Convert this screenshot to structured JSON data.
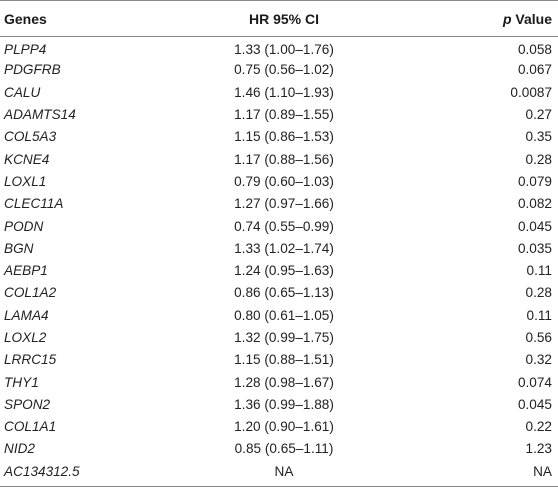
{
  "table": {
    "headers": {
      "genes": "Genes",
      "hr": "HR 95% CI",
      "p_prefix": "p",
      "p_suffix": " Value"
    },
    "rows": [
      {
        "gene": "PLPP4",
        "hr": "1.33 (1.00–1.76)",
        "p": "0.058"
      },
      {
        "gene": "PDGFRB",
        "hr": "0.75 (0.56–1.02)",
        "p": "0.067"
      },
      {
        "gene": "CALU",
        "hr": "1.46 (1.10–1.93)",
        "p": "0.0087"
      },
      {
        "gene": "ADAMTS14",
        "hr": "1.17 (0.89–1.55)",
        "p": "0.27"
      },
      {
        "gene": "COL5A3",
        "hr": "1.15 (0.86–1.53)",
        "p": "0.35"
      },
      {
        "gene": "KCNE4",
        "hr": "1.17 (0.88–1.56)",
        "p": "0.28"
      },
      {
        "gene": "LOXL1",
        "hr": "0.79 (0.60–1.03)",
        "p": "0.079"
      },
      {
        "gene": "CLEC11A",
        "hr": "1.27 (0.97–1.66)",
        "p": "0.082"
      },
      {
        "gene": "PODN",
        "hr": "0.74 (0.55–0.99)",
        "p": "0.045"
      },
      {
        "gene": "BGN",
        "hr": "1.33 (1.02–1.74)",
        "p": "0.035"
      },
      {
        "gene": "AEBP1",
        "hr": "1.24 (0.95–1.63)",
        "p": "0.11"
      },
      {
        "gene": "COL1A2",
        "hr": "0.86 (0.65–1.13)",
        "p": "0.28"
      },
      {
        "gene": "LAMA4",
        "hr": "0.80 (0.61–1.05)",
        "p": "0.11"
      },
      {
        "gene": "LOXL2",
        "hr": "1.32 (0.99–1.75)",
        "p": "0.56"
      },
      {
        "gene": "LRRC15",
        "hr": "1.15 (0.88–1.51)",
        "p": "0.32"
      },
      {
        "gene": "THY1",
        "hr": "1.28 (0.98–1.67)",
        "p": "0.074"
      },
      {
        "gene": "SPON2",
        "hr": "1.36 (0.99–1.88)",
        "p": "0.045"
      },
      {
        "gene": "COL1A1",
        "hr": "1.20 (0.90–1.61)",
        "p": "0.22"
      },
      {
        "gene": "NID2",
        "hr": "0.85 (0.65–1.11)",
        "p": "1.23"
      },
      {
        "gene": "AC134312.5",
        "hr": "NA",
        "p": "NA"
      }
    ]
  }
}
